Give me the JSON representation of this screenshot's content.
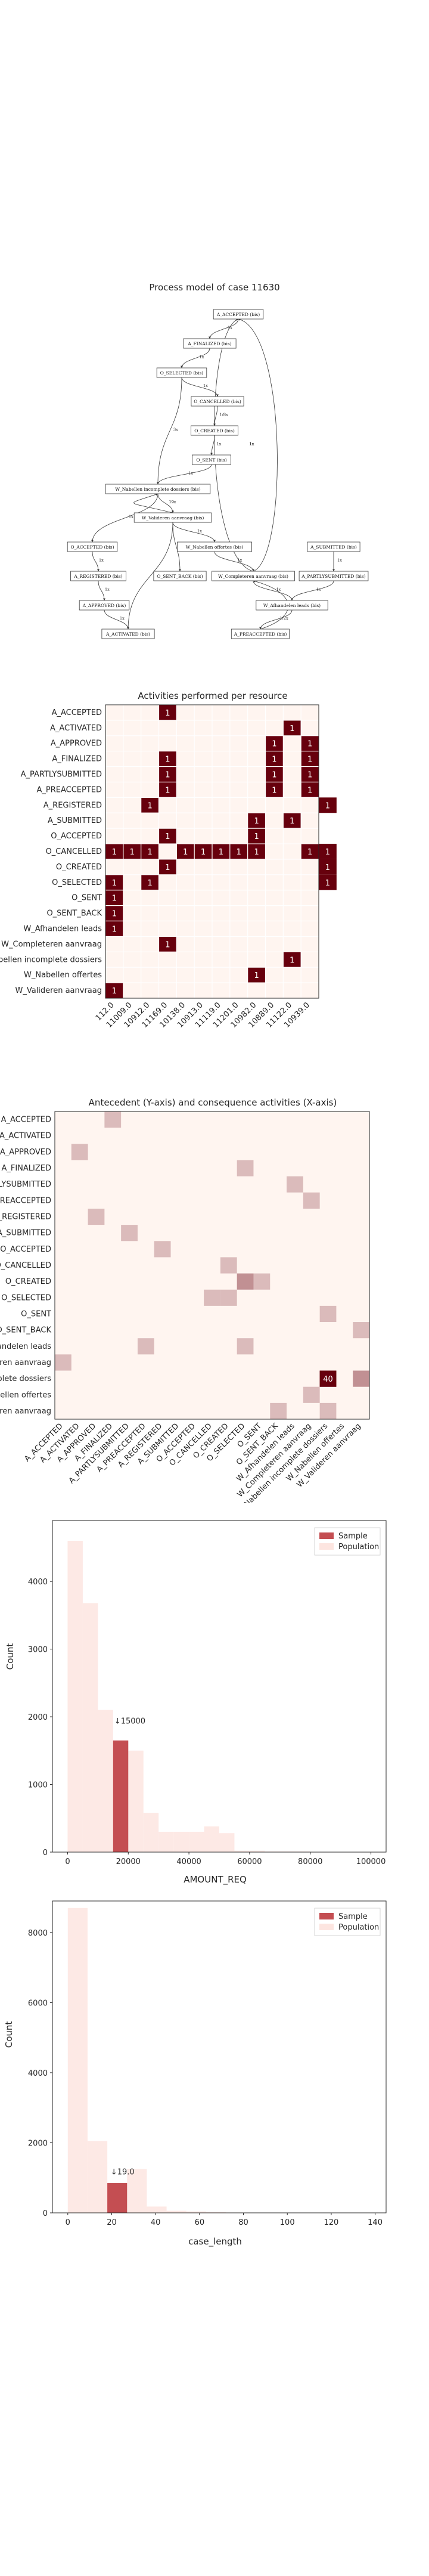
{
  "process_model": {
    "title": "Process model of case 11630",
    "nodes": [
      {
        "id": "A_ACCEPTED",
        "label": "A_ACCEPTED (bis)"
      },
      {
        "id": "A_FINALIZED",
        "label": "A_FINALIZED (bis)"
      },
      {
        "id": "O_SELECTED",
        "label": "O_SELECTED (bis)"
      },
      {
        "id": "O_CANCELLED",
        "label": "O_CANCELLED (bis)"
      },
      {
        "id": "O_CREATED",
        "label": "O_CREATED (bis)"
      },
      {
        "id": "O_SENT",
        "label": "O_SENT (bis)"
      },
      {
        "id": "W_Nabellen_incomplete",
        "label": "W_Nabellen incomplete dossiers (bis)"
      },
      {
        "id": "W_Valideren",
        "label": "W_Valideren aanvraag (bis)"
      },
      {
        "id": "O_ACCEPTED",
        "label": "O_ACCEPTED (bis)"
      },
      {
        "id": "W_Nabellen_offertes",
        "label": "W_Nabellen offertes (bis)"
      },
      {
        "id": "A_SUBMITTED",
        "label": "A_SUBMITTED (bis)"
      },
      {
        "id": "O_SENT_BACK",
        "label": "O_SENT_BACK (bis)"
      },
      {
        "id": "A_REGISTERED",
        "label": "A_REGISTERED (bis)"
      },
      {
        "id": "W_Completeren",
        "label": "W_Completeren aanvraag (bis)"
      },
      {
        "id": "A_PARTLYSUBMITTED",
        "label": "A_PARTLYSUBMITTED (bis)"
      },
      {
        "id": "A_APPROVED",
        "label": "A_APPROVED (bis)"
      },
      {
        "id": "W_Afhandelen",
        "label": "W_Afhandelen leads (bis)"
      },
      {
        "id": "A_ACTIVATED",
        "label": "A_ACTIVATED (bis)"
      },
      {
        "id": "A_PREACCEPTED",
        "label": "A_PREACCEPTED (bis)"
      }
    ],
    "edges": [
      {
        "from": "A_ACCEPTED",
        "to": "A_FINALIZED",
        "label": "1x"
      },
      {
        "from": "A_FINALIZED",
        "to": "O_SELECTED",
        "label": "1x"
      },
      {
        "from": "O_SELECTED",
        "to": "O_CANCELLED",
        "label": "1x"
      },
      {
        "from": "O_CANCELLED",
        "to": "O_CREATED",
        "label": "1/8x"
      },
      {
        "from": "O_CREATED",
        "to": "O_SENT",
        "label": "1x"
      },
      {
        "from": "O_SENT",
        "to": "W_Nabellen_incomplete",
        "label": "1x"
      },
      {
        "from": "O_SELECTED",
        "to": "W_Nabellen_incomplete",
        "label": "3x"
      },
      {
        "from": "W_Nabellen_incomplete",
        "to": "W_Valideren",
        "label": "19x"
      },
      {
        "from": "W_Valideren",
        "to": "W_Nabellen_incomplete",
        "label": "19x"
      },
      {
        "from": "W_Nabellen_incomplete",
        "to": "O_ACCEPTED",
        "label": "1x"
      },
      {
        "from": "W_Valideren",
        "to": "W_Nabellen_offertes",
        "label": "1x"
      },
      {
        "from": "W_Valideren",
        "to": "O_SENT_BACK",
        "label": "1x"
      },
      {
        "from": "O_ACCEPTED",
        "to": "A_REGISTERED",
        "label": "1x"
      },
      {
        "from": "A_REGISTERED",
        "to": "A_APPROVED",
        "label": "1x"
      },
      {
        "from": "A_APPROVED",
        "to": "A_ACTIVATED",
        "label": "1x"
      },
      {
        "from": "W_Nabellen_offertes",
        "to": "W_Completeren",
        "label": "1x"
      },
      {
        "from": "W_Completeren",
        "to": "A_ACCEPTED",
        "label": "1x"
      },
      {
        "from": "W_Completeren",
        "to": "W_Afhandelen",
        "label": "1x"
      },
      {
        "from": "A_SUBMITTED",
        "to": "A_PARTLYSUBMITTED",
        "label": "1x"
      },
      {
        "from": "A_PARTLYSUBMITTED",
        "to": "W_Afhandelen",
        "label": "1x"
      },
      {
        "from": "W_Afhandelen",
        "to": "A_PREACCEPTED",
        "label": "1/2x"
      },
      {
        "from": "A_PREACCEPTED",
        "to": "W_Completeren",
        "label": "1x"
      },
      {
        "from": "W_Valideren",
        "to": "A_ACTIVATED",
        "label": "5x"
      },
      {
        "from": "W_Completeren",
        "to": "A_ACCEPTED",
        "label": "1x"
      }
    ]
  },
  "chart_data": [
    {
      "type": "heatmap",
      "title": "Activities performed per resource",
      "colormap": [
        "#fff5f0",
        "#67000d"
      ],
      "rows": [
        "A_ACCEPTED",
        "A_ACTIVATED",
        "A_APPROVED",
        "A_FINALIZED",
        "A_PARTLYSUBMITTED",
        "A_PREACCEPTED",
        "A_REGISTERED",
        "A_SUBMITTED",
        "O_ACCEPTED",
        "O_CANCELLED",
        "O_CREATED",
        "O_SELECTED",
        "O_SENT",
        "O_SENT_BACK",
        "W_Afhandelen leads",
        "W_Completeren aanvraag",
        "W_Nabellen incomplete dossiers",
        "W_Nabellen offertes",
        "W_Valideren aanvraag"
      ],
      "columns": [
        "112.0",
        "11009.0",
        "10912.0",
        "11169.0",
        "10138.0",
        "10913.0",
        "11119.0",
        "11201.0",
        "10982.0",
        "10889.0",
        "11122.0",
        "10939.0"
      ],
      "cells": [
        [
          0,
          3,
          1
        ],
        [
          1,
          10,
          1
        ],
        [
          2,
          9,
          1
        ],
        [
          2,
          11,
          1
        ],
        [
          3,
          3,
          1
        ],
        [
          3,
          9,
          1
        ],
        [
          3,
          11,
          1
        ],
        [
          4,
          3,
          1
        ],
        [
          4,
          9,
          1
        ],
        [
          4,
          11,
          1
        ],
        [
          5,
          3,
          1
        ],
        [
          5,
          9,
          1
        ],
        [
          5,
          11,
          1
        ],
        [
          6,
          2,
          1
        ],
        [
          6,
          12,
          1
        ],
        [
          7,
          8,
          1
        ],
        [
          7,
          10,
          1
        ],
        [
          8,
          3,
          1
        ],
        [
          8,
          8,
          1
        ],
        [
          9,
          0,
          1
        ],
        [
          9,
          1,
          1
        ],
        [
          9,
          2,
          1
        ],
        [
          9,
          4,
          1
        ],
        [
          9,
          5,
          1
        ],
        [
          9,
          6,
          1
        ],
        [
          9,
          7,
          1
        ],
        [
          9,
          8,
          1
        ],
        [
          9,
          11,
          1
        ],
        [
          9,
          12,
          1
        ],
        [
          10,
          3,
          1
        ],
        [
          10,
          12,
          1
        ],
        [
          11,
          0,
          1
        ],
        [
          11,
          2,
          1
        ],
        [
          11,
          12,
          1
        ],
        [
          12,
          0,
          1
        ],
        [
          13,
          0,
          1
        ],
        [
          14,
          0,
          1
        ],
        [
          15,
          3,
          1
        ],
        [
          16,
          10,
          1
        ],
        [
          17,
          8,
          1
        ],
        [
          18,
          0,
          1
        ]
      ]
    },
    {
      "type": "heatmap",
      "title": "Antecedent (Y-axis) and consequence activities (X-axis)",
      "colormap": [
        "#fff5f0",
        "#67000d"
      ],
      "labels": [
        "A_ACCEPTED",
        "A_ACTIVATED",
        "A_APPROVED",
        "A_FINALIZED",
        "A_PARTLYSUBMITTED",
        "A_PREACCEPTED",
        "A_REGISTERED",
        "A_SUBMITTED",
        "O_ACCEPTED",
        "O_CANCELLED",
        "O_CREATED",
        "O_SELECTED",
        "O_SENT",
        "O_SENT_BACK",
        "W_Afhandelen leads",
        "W_Completeren aanvraag",
        "W_Nabellen incomplete dossiers",
        "W_Nabellen offertes",
        "W_Valideren aanvraag"
      ],
      "cells": [
        [
          0,
          3,
          1
        ],
        [
          2,
          1,
          1
        ],
        [
          3,
          11,
          1
        ],
        [
          4,
          14,
          1
        ],
        [
          5,
          15,
          1
        ],
        [
          6,
          2,
          1
        ],
        [
          7,
          4,
          1
        ],
        [
          8,
          6,
          1
        ],
        [
          9,
          10,
          1
        ],
        [
          10,
          12,
          1
        ],
        [
          11,
          9,
          1
        ],
        [
          11,
          10,
          1
        ],
        [
          12,
          16,
          1
        ],
        [
          13,
          18,
          1
        ],
        [
          14,
          5,
          1
        ],
        [
          15,
          0,
          1
        ],
        [
          16,
          16,
          40
        ],
        [
          16,
          18,
          3
        ],
        [
          17,
          15,
          1
        ],
        [
          18,
          13,
          1
        ],
        [
          18,
          16,
          1
        ],
        [
          10,
          11,
          3
        ],
        [
          14,
          11,
          1
        ]
      ],
      "annotation": "40"
    },
    {
      "type": "bar",
      "xlabel": "AMOUNT_REQ",
      "ylabel": "Count",
      "xlim": [
        -5000,
        105000
      ],
      "ylim": [
        0,
        4900
      ],
      "xticks": [
        0,
        20000,
        40000,
        60000,
        80000,
        100000
      ],
      "yticks": [
        0,
        1000,
        2000,
        3000,
        4000
      ],
      "bin_width": 5000,
      "series": [
        {
          "name": "Sample",
          "color": "#c44e52",
          "bins": [
            [
              15000,
              1650
            ]
          ]
        },
        {
          "name": "Population",
          "color": "#fde5e0",
          "bins": [
            [
              0,
              4600
            ],
            [
              5000,
              3680
            ],
            [
              10000,
              2100
            ],
            [
              15000,
              1650
            ],
            [
              20000,
              1500
            ],
            [
              25000,
              580
            ],
            [
              30000,
              300
            ],
            [
              35000,
              300
            ],
            [
              40000,
              300
            ],
            [
              45000,
              380
            ],
            [
              50000,
              280
            ],
            [
              55000,
              20
            ],
            [
              60000,
              20
            ],
            [
              65000,
              10
            ],
            [
              70000,
              10
            ],
            [
              75000,
              10
            ]
          ]
        }
      ],
      "annotation": {
        "text": "↓15000",
        "x": 15000,
        "y": 1900
      },
      "legend": "top-right"
    },
    {
      "type": "bar",
      "xlabel": "case_length",
      "ylabel": "Count",
      "xlim": [
        -7,
        145
      ],
      "ylim": [
        0,
        8900
      ],
      "xticks": [
        0,
        20,
        40,
        60,
        80,
        100,
        120,
        140
      ],
      "yticks": [
        0,
        2000,
        4000,
        6000,
        8000
      ],
      "bin_width": 9,
      "series": [
        {
          "name": "Sample",
          "color": "#c44e52",
          "bins": [
            [
              18,
              850
            ]
          ]
        },
        {
          "name": "Population",
          "color": "#fde5e0",
          "bins": [
            [
              0,
              8700
            ],
            [
              9,
              2050
            ],
            [
              18,
              850
            ],
            [
              27,
              1250
            ],
            [
              36,
              180
            ],
            [
              45,
              60
            ],
            [
              54,
              40
            ],
            [
              63,
              20
            ],
            [
              72,
              10
            ]
          ]
        }
      ],
      "annotation": {
        "text": "↓19.0",
        "x": 19,
        "y": 1100
      },
      "legend": "top-right"
    }
  ]
}
